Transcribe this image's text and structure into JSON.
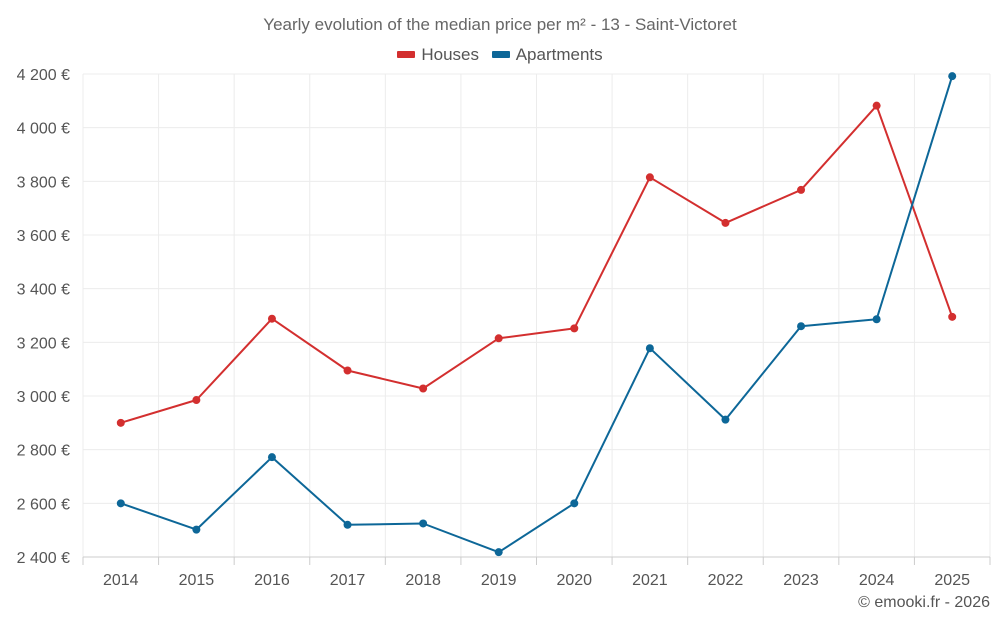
{
  "chart_data": {
    "type": "line",
    "title": "Yearly evolution of the median price per m² - 13 - Saint-Victoret",
    "categories": [
      "2014",
      "2015",
      "2016",
      "2017",
      "2018",
      "2019",
      "2020",
      "2021",
      "2022",
      "2023",
      "2024",
      "2025"
    ],
    "series": [
      {
        "name": "Houses",
        "color": "#d32f2f",
        "values": [
          2900,
          2985,
          3288,
          3095,
          3028,
          3215,
          3252,
          3815,
          3645,
          3768,
          4082,
          3295
        ]
      },
      {
        "name": "Apartments",
        "color": "#0d6798",
        "values": [
          2600,
          2502,
          2772,
          2520,
          2525,
          2418,
          2600,
          3178,
          2912,
          3260,
          3286,
          4192
        ]
      }
    ],
    "yticks": [
      "2 400 €",
      "2 600 €",
      "2 800 €",
      "3 000 €",
      "3 200 €",
      "3 400 €",
      "3 600 €",
      "3 800 €",
      "4 000 €",
      "4 200 €"
    ],
    "ytick_values": [
      2400,
      2600,
      2800,
      3000,
      3200,
      3400,
      3600,
      3800,
      4000,
      4200
    ],
    "ylim": [
      2400,
      4200
    ],
    "xlabel": "",
    "ylabel": "",
    "grid": true,
    "legend_position": "top-center"
  },
  "credit": "© emooki.fr - 2026"
}
